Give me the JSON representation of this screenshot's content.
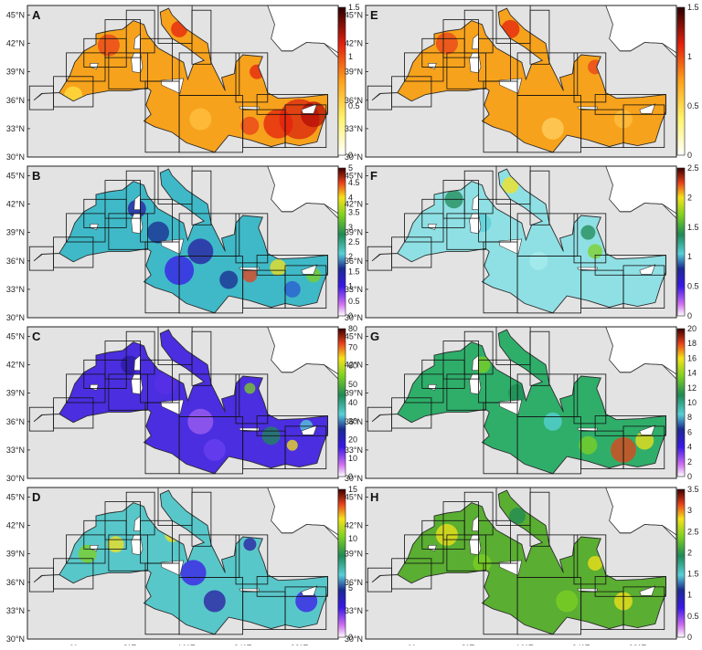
{
  "lat_labels": [
    "45°N",
    "42°N",
    "39°N",
    "36°N",
    "33°N",
    "30°N"
  ],
  "lon_labels": [
    "0°",
    "8°E",
    "16°E",
    "24°E",
    "32°E"
  ],
  "panels": [
    {
      "letter": "A",
      "colormap": "heat",
      "colorbar_ticks": [
        "1.5",
        "1",
        "0.5",
        "0"
      ]
    },
    {
      "letter": "B",
      "colormap": "spectral",
      "colorbar_ticks": [
        "5",
        "4.5",
        "4",
        "3.5",
        "3",
        "2.5",
        "2",
        "1.5",
        "1",
        "0.5",
        "0"
      ]
    },
    {
      "letter": "C",
      "colormap": "spectral",
      "colorbar_ticks": [
        "80",
        "70",
        "60",
        "50",
        "40",
        "30",
        "20",
        "10",
        "0"
      ]
    },
    {
      "letter": "D",
      "colormap": "spectral",
      "colorbar_ticks": [
        "15",
        "10",
        "5",
        "0"
      ]
    },
    {
      "letter": "E",
      "colormap": "heat",
      "colorbar_ticks": [
        "1.5",
        "1",
        "0.5",
        "0"
      ]
    },
    {
      "letter": "F",
      "colormap": "spectral",
      "colorbar_ticks": [
        "2.5",
        "2",
        "1.5",
        "1",
        "0.5",
        "0"
      ]
    },
    {
      "letter": "G",
      "colormap": "spectral",
      "colorbar_ticks": [
        "20",
        "18",
        "16",
        "14",
        "12",
        "10",
        "8",
        "6",
        "4",
        "2",
        "0"
      ]
    },
    {
      "letter": "H",
      "colormap": "spectral",
      "colorbar_ticks": [
        "3.5",
        "3",
        "2.5",
        "2",
        "1.5",
        "1",
        "0.5",
        "0"
      ]
    }
  ],
  "colors": {
    "land": "#ffffff",
    "background": "#e3e3e3",
    "heat_sea": "#f7a21c",
    "heat_hot": "#d8220e",
    "B_sea": "#3fb9c7",
    "C_sea": "#4a2ee0",
    "D_sea": "#58c7c9",
    "F_sea": "#8fe0e4",
    "G_sea": "#2fae6a",
    "H_sea": "#5aae32"
  }
}
